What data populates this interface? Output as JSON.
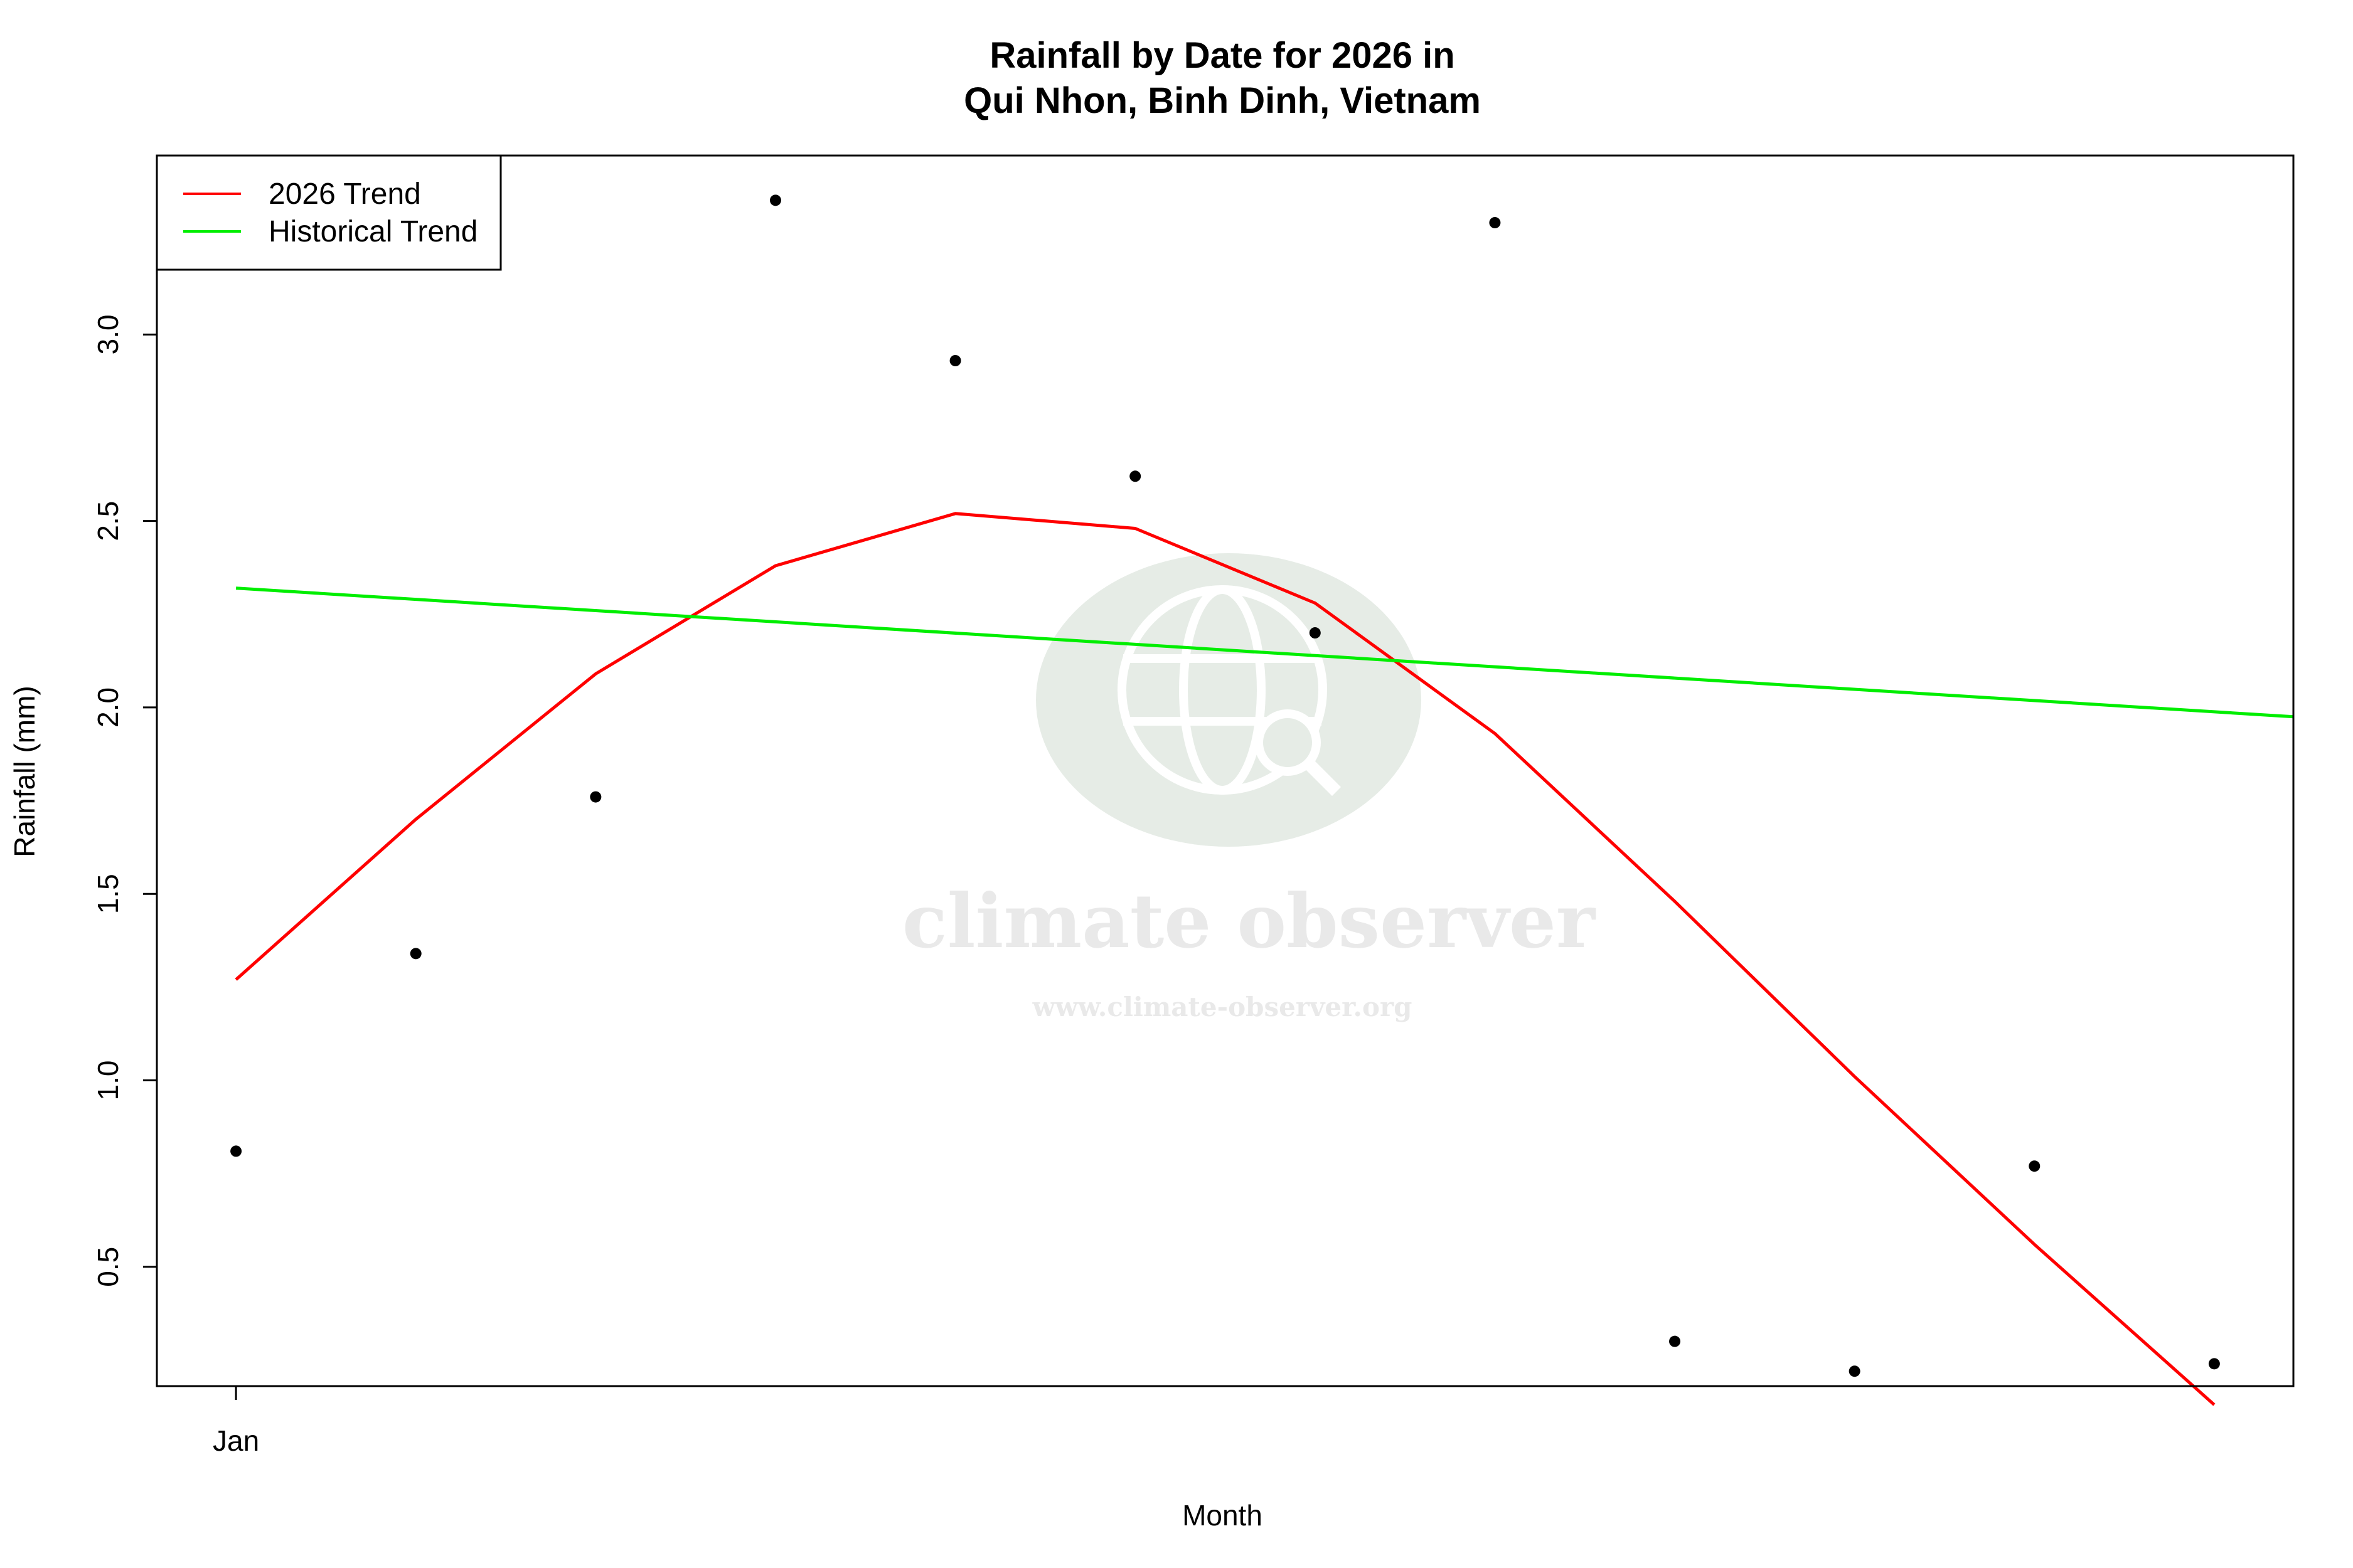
{
  "chart_data": {
    "type": "line",
    "title": [
      "Rainfall by Date for 2026 in",
      "Qui Nhon, Binh Dinh, Vietnam"
    ],
    "xlabel": "Month",
    "ylabel": "Rainfall (mm)",
    "x_tick_labels": [
      "Jan"
    ],
    "x_range": [
      0.56,
      12.44
    ],
    "ylim": [
      0.18,
      3.48
    ],
    "y_ticks": [
      0.5,
      1.0,
      1.5,
      2.0,
      2.5,
      3.0
    ],
    "y_tick_labels": [
      "0.5",
      "1.0",
      "1.5",
      "2.0",
      "2.5",
      "3.0"
    ],
    "grid": false,
    "legend_position": "top-left",
    "points": {
      "x": [
        1,
        2,
        3,
        4,
        5,
        6,
        7,
        8,
        9,
        10,
        11,
        12
      ],
      "y": [
        0.81,
        1.34,
        1.76,
        3.36,
        2.93,
        2.62,
        2.2,
        3.3,
        0.3,
        0.22,
        0.77,
        0.24
      ],
      "color": "#000000"
    },
    "series": [
      {
        "name": "2026 Trend",
        "color": "#ff0000",
        "x": [
          1,
          2,
          3,
          4,
          5,
          6,
          7,
          8,
          9,
          10,
          11,
          12
        ],
        "y": [
          1.27,
          1.7,
          2.09,
          2.38,
          2.52,
          2.48,
          2.28,
          1.93,
          1.48,
          1.01,
          0.56,
          0.13
        ]
      },
      {
        "name": "Historical Trend",
        "color": "#00ee00",
        "x": [
          1,
          12.44
        ],
        "y": [
          2.32,
          1.975
        ]
      }
    ]
  },
  "watermark": {
    "name": "climate observer",
    "url": "www.climate-observer.org",
    "icon": "globe-search-icon",
    "color": "#e6ece6"
  }
}
